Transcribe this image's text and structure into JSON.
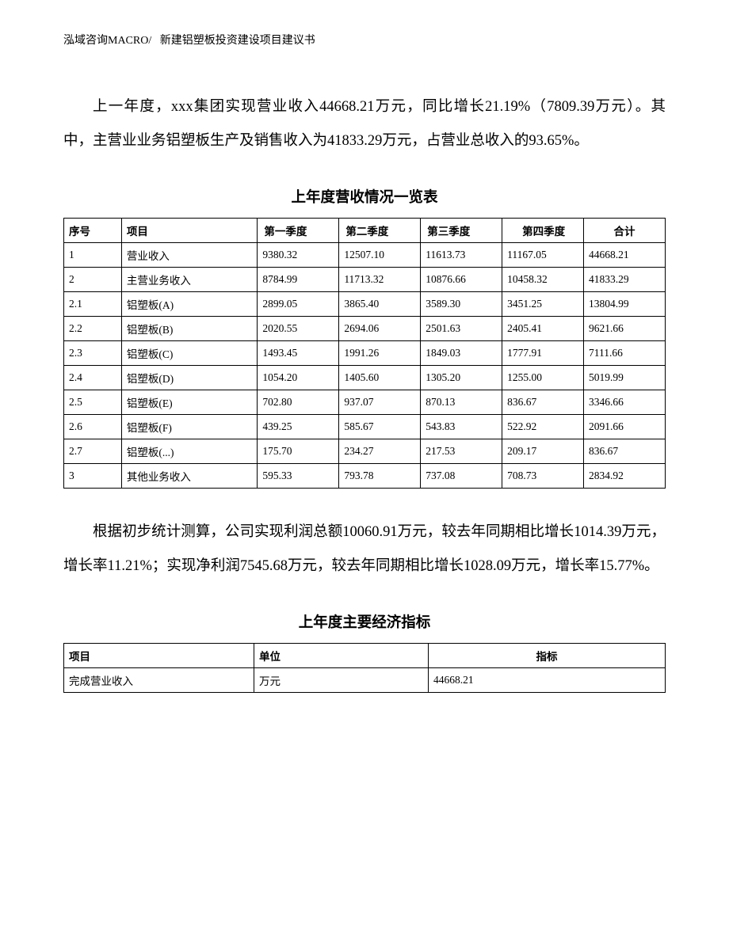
{
  "header": {
    "left": "泓域咨询MACRO/",
    "right": "新建铝塑板投资建设项目建议书"
  },
  "paragraph1": "上一年度，xxx集团实现营业收入44668.21万元，同比增长21.19%（7809.39万元）。其中，主营业业务铝塑板生产及销售收入为41833.29万元，占营业总收入的93.65%。",
  "table1": {
    "title": "上年度营收情况一览表",
    "columns": [
      "序号",
      "项目",
      "第一季度",
      "第二季度",
      "第三季度",
      "第四季度",
      "合计"
    ],
    "rows": [
      [
        "1",
        "营业收入",
        "9380.32",
        "12507.10",
        "11613.73",
        "11167.05",
        "44668.21"
      ],
      [
        "2",
        "主营业务收入",
        "8784.99",
        "11713.32",
        "10876.66",
        "10458.32",
        "41833.29"
      ],
      [
        "2.1",
        "铝塑板(A)",
        "2899.05",
        "3865.40",
        "3589.30",
        "3451.25",
        "13804.99"
      ],
      [
        "2.2",
        "铝塑板(B)",
        "2020.55",
        "2694.06",
        "2501.63",
        "2405.41",
        "9621.66"
      ],
      [
        "2.3",
        "铝塑板(C)",
        "1493.45",
        "1991.26",
        "1849.03",
        "1777.91",
        "7111.66"
      ],
      [
        "2.4",
        "铝塑板(D)",
        "1054.20",
        "1405.60",
        "1305.20",
        "1255.00",
        "5019.99"
      ],
      [
        "2.5",
        "铝塑板(E)",
        "702.80",
        "937.07",
        "870.13",
        "836.67",
        "3346.66"
      ],
      [
        "2.6",
        "铝塑板(F)",
        "439.25",
        "585.67",
        "543.83",
        "522.92",
        "2091.66"
      ],
      [
        "2.7",
        "铝塑板(...)",
        "175.70",
        "234.27",
        "217.53",
        "209.17",
        "836.67"
      ],
      [
        "3",
        "其他业务收入",
        "595.33",
        "793.78",
        "737.08",
        "708.73",
        "2834.92"
      ]
    ]
  },
  "paragraph2": "根据初步统计测算，公司实现利润总额10060.91万元，较去年同期相比增长1014.39万元，增长率11.21%；实现净利润7545.68万元，较去年同期相比增长1028.09万元，增长率15.77%。",
  "table2": {
    "title": "上年度主要经济指标",
    "columns": [
      "项目",
      "单位",
      "指标"
    ],
    "rows": [
      [
        "完成营业收入",
        "万元",
        "44668.21"
      ]
    ]
  }
}
